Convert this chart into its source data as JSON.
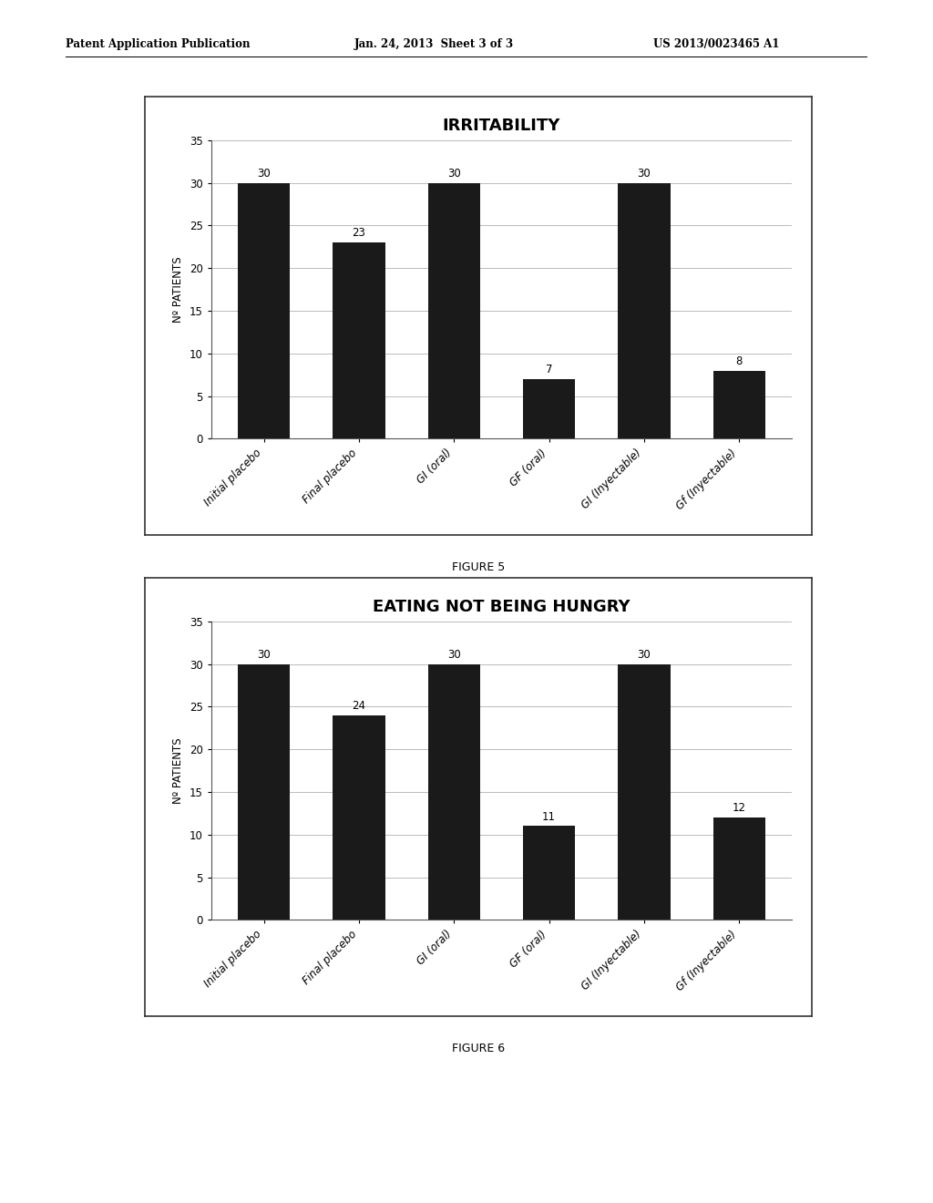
{
  "fig1": {
    "title": "IRRITABILITY",
    "categories": [
      "Initial placebo",
      "Final placebo",
      "GI (oral)",
      "GF (oral)",
      "GI (Inyectable)",
      "Gf (Inyectable)"
    ],
    "values": [
      30,
      23,
      30,
      7,
      30,
      8
    ],
    "ylabel": "Nº PATIENTS",
    "ylim": [
      0,
      35
    ],
    "yticks": [
      0,
      5,
      10,
      15,
      20,
      25,
      30,
      35
    ],
    "figure_label": "FIGURE 5"
  },
  "fig2": {
    "title": "EATING NOT BEING HUNGRY",
    "categories": [
      "Initial placebo",
      "Final placebo",
      "GI (oral)",
      "GF (oral)",
      "GI (Inyectable)",
      "Gf (Inyectable)"
    ],
    "values": [
      30,
      24,
      30,
      11,
      30,
      12
    ],
    "ylabel": "Nº PATIENTS",
    "ylim": [
      0,
      35
    ],
    "yticks": [
      0,
      5,
      10,
      15,
      20,
      25,
      30,
      35
    ],
    "figure_label": "FIGURE 6"
  },
  "header_left": "Patent Application Publication",
  "header_center": "Jan. 24, 2013  Sheet 3 of 3",
  "header_right": "US 2013/0023465 A1",
  "bar_color": "#1a1a1a",
  "box_facecolor": "#ffffff",
  "box_edgecolor": "#555555",
  "background_color": "#ffffff",
  "grid_color": "#bbbbbb",
  "title_fontsize": 13,
  "tick_fontsize": 8.5,
  "value_fontsize": 8.5,
  "ylabel_fontsize": 8.5,
  "figure_label_fontsize": 9
}
